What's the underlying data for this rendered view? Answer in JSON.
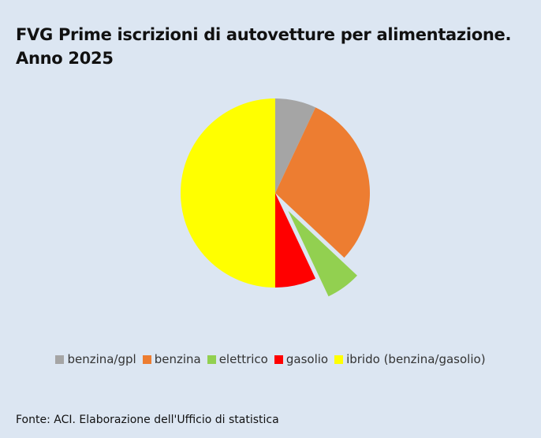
{
  "chart_data": {
    "type": "pie",
    "title": [
      "FVG Prime iscrizioni di autovetture per alimentazione.",
      "Anno 2025"
    ],
    "categories": [
      "benzina/gpl",
      "benzina",
      "elettrico",
      "gasolio",
      "ibrido (benzina/gasolio)"
    ],
    "values": [
      7,
      30,
      6,
      7,
      50
    ],
    "colors": [
      "#a5a5a5",
      "#ed7d31",
      "#92d050",
      "#ff0000",
      "#ffff00"
    ],
    "explode": [
      false,
      false,
      true,
      false,
      false
    ],
    "legend": "bottom",
    "source": "Fonte: ACI. Elaborazione dell'Ufficio di statistica"
  }
}
